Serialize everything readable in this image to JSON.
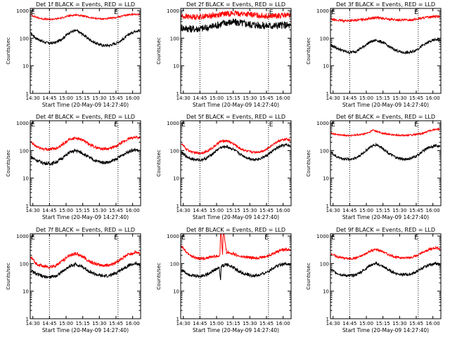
{
  "common": {
    "x_ticks": [
      "14:30",
      "14:45",
      "15:00",
      "15:15",
      "15:30",
      "15:45",
      "16:00"
    ],
    "x_tick_hours": [
      14.5,
      14.75,
      15.0,
      15.25,
      15.5,
      15.75,
      16.0
    ],
    "y_ticks": [
      "1",
      "10",
      "100",
      "1000"
    ],
    "y_tick_values": [
      1,
      10,
      100,
      1000
    ],
    "xlabel": "Start Time (20-May-09 14:27:40)",
    "ylabel": "Counts/sec",
    "xlim_hours": [
      14.4611,
      16.12
    ],
    "ylim": [
      1,
      1200
    ],
    "yscale": "log",
    "colors": {
      "events": "#000000",
      "lld": "#ff0000"
    }
  },
  "chart_data": [
    {
      "type": "line",
      "title": "Det 1f BLACK = Events, RED = LLD",
      "markers": [
        {
          "x": 14.505,
          "label": "E"
        },
        {
          "x": 15.75,
          "label": "E"
        }
      ],
      "vlines": [
        14.75,
        15.78
      ],
      "series": [
        {
          "name": "Events",
          "color": "#000000",
          "noise": 0.05,
          "x": [
            14.47,
            14.55,
            14.65,
            14.75,
            14.85,
            14.95,
            15.05,
            15.15,
            15.25,
            15.35,
            15.45,
            15.55,
            15.65,
            15.75,
            15.85,
            15.95,
            16.05,
            16.11
          ],
          "y": [
            150,
            100,
            75,
            65,
            70,
            100,
            160,
            190,
            140,
            90,
            65,
            55,
            55,
            65,
            90,
            140,
            190,
            180
          ]
        },
        {
          "name": "LLD",
          "color": "#ff0000",
          "noise": 0.03,
          "x": [
            14.47,
            14.55,
            14.65,
            14.75,
            14.85,
            14.95,
            15.05,
            15.15,
            15.25,
            15.35,
            15.45,
            15.55,
            15.65,
            15.75,
            15.85,
            15.95,
            16.05,
            16.11
          ],
          "y": [
            700,
            580,
            500,
            480,
            500,
            560,
            650,
            700,
            650,
            560,
            520,
            500,
            520,
            560,
            640,
            720,
            740,
            740
          ]
        }
      ]
    },
    {
      "type": "line",
      "title": "Det 2f BLACK = Events, RED = LLD",
      "markers": [
        {
          "x": 15.82,
          "label": "E"
        }
      ],
      "vlines": [
        14.75,
        15.78
      ],
      "series": [
        {
          "name": "Events",
          "color": "#000000",
          "noise": 0.14,
          "x": [
            14.47,
            14.6,
            14.75,
            14.9,
            15.05,
            15.15,
            15.25,
            15.35,
            15.5,
            15.6,
            15.75,
            15.9,
            16.05,
            16.11
          ],
          "y": [
            240,
            220,
            220,
            250,
            320,
            370,
            380,
            360,
            320,
            300,
            280,
            290,
            300,
            280
          ]
        },
        {
          "name": "LLD",
          "color": "#ff0000",
          "noise": 0.1,
          "x": [
            14.47,
            14.6,
            14.75,
            14.9,
            15.05,
            15.15,
            15.25,
            15.35,
            15.5,
            15.6,
            15.75,
            15.9,
            16.05,
            16.11
          ],
          "y": [
            620,
            600,
            600,
            650,
            720,
            780,
            800,
            780,
            720,
            680,
            640,
            640,
            680,
            650
          ]
        }
      ]
    },
    {
      "type": "line",
      "title": "Det 3f BLACK = Events, RED = LLD",
      "markers": [
        {
          "x": 14.505,
          "label": "E"
        },
        {
          "x": 15.75,
          "label": "E"
        }
      ],
      "vlines": [
        14.75,
        15.78
      ],
      "series": [
        {
          "name": "Events",
          "color": "#000000",
          "noise": 0.05,
          "x": [
            14.47,
            14.55,
            14.65,
            14.75,
            14.85,
            14.95,
            15.05,
            15.15,
            15.25,
            15.35,
            15.45,
            15.55,
            15.65,
            15.75,
            15.85,
            15.95,
            16.05,
            16.11
          ],
          "y": [
            55,
            45,
            35,
            30,
            34,
            48,
            72,
            85,
            70,
            48,
            36,
            30,
            30,
            38,
            55,
            75,
            90,
            85
          ]
        },
        {
          "name": "LLD",
          "color": "#ff0000",
          "noise": 0.04,
          "x": [
            14.47,
            14.55,
            14.65,
            14.75,
            14.85,
            14.95,
            15.05,
            15.15,
            15.25,
            15.35,
            15.45,
            15.55,
            15.65,
            15.75,
            15.85,
            15.95,
            16.05,
            16.11
          ],
          "y": [
            480,
            450,
            430,
            430,
            450,
            480,
            520,
            560,
            520,
            480,
            460,
            450,
            460,
            490,
            540,
            590,
            620,
            600
          ]
        }
      ]
    },
    {
      "type": "line",
      "title": "Det 4f BLACK = Events, RED = LLD",
      "markers": [
        {
          "x": 14.505,
          "label": "E"
        },
        {
          "x": 15.75,
          "label": "E"
        }
      ],
      "vlines": [
        14.75,
        15.78
      ],
      "series": [
        {
          "name": "Events",
          "color": "#000000",
          "noise": 0.06,
          "x": [
            14.47,
            14.55,
            14.65,
            14.75,
            14.85,
            14.95,
            15.05,
            15.15,
            15.25,
            15.35,
            15.45,
            15.55,
            15.65,
            15.75,
            15.85,
            15.95,
            16.05,
            16.11
          ],
          "y": [
            60,
            45,
            36,
            33,
            38,
            55,
            85,
            100,
            80,
            55,
            42,
            37,
            38,
            48,
            70,
            95,
            105,
            95
          ]
        },
        {
          "name": "LLD",
          "color": "#ff0000",
          "noise": 0.05,
          "x": [
            14.47,
            14.55,
            14.65,
            14.75,
            14.85,
            14.95,
            15.05,
            15.15,
            15.25,
            15.35,
            15.45,
            15.55,
            15.65,
            15.75,
            15.85,
            15.95,
            16.05,
            16.11
          ],
          "y": [
            200,
            140,
            115,
            110,
            120,
            170,
            250,
            290,
            240,
            165,
            130,
            115,
            118,
            140,
            200,
            270,
            310,
            290
          ]
        }
      ]
    },
    {
      "type": "line",
      "title": "Det 5f BLACK = Events, RED = LLD",
      "markers": [
        {
          "x": 14.505,
          "label": "E"
        },
        {
          "x": 15.82,
          "label": "E"
        }
      ],
      "vlines": [
        14.75,
        15.78
      ],
      "series": [
        {
          "name": "Events",
          "color": "#000000",
          "noise": 0.05,
          "x": [
            14.47,
            14.55,
            14.65,
            14.75,
            14.85,
            14.95,
            15.05,
            15.15,
            15.25,
            15.35,
            15.45,
            15.55,
            15.65,
            15.75,
            15.85,
            15.95,
            16.05,
            16.11
          ],
          "y": [
            85,
            60,
            48,
            45,
            52,
            80,
            125,
            140,
            110,
            75,
            55,
            48,
            50,
            65,
            100,
            140,
            160,
            145
          ]
        },
        {
          "name": "LLD",
          "color": "#ff0000",
          "noise": 0.04,
          "x": [
            14.47,
            14.55,
            14.65,
            14.75,
            14.85,
            14.95,
            15.05,
            15.15,
            15.25,
            15.35,
            15.45,
            15.55,
            15.65,
            15.75,
            15.85,
            15.95,
            16.05,
            16.11
          ],
          "y": [
            180,
            110,
            85,
            80,
            90,
            130,
            210,
            230,
            180,
            120,
            95,
            88,
            90,
            110,
            170,
            230,
            260,
            230
          ]
        }
      ]
    },
    {
      "type": "line",
      "title": "Det 6f BLACK = Events, RED = LLD",
      "markers": [
        {
          "x": 14.505,
          "label": "E"
        },
        {
          "x": 15.75,
          "label": "E"
        }
      ],
      "vlines": [
        14.75,
        15.78
      ],
      "series": [
        {
          "name": "Events",
          "color": "#000000",
          "noise": 0.05,
          "x": [
            14.47,
            14.55,
            14.65,
            14.75,
            14.85,
            14.95,
            15.05,
            15.15,
            15.25,
            15.35,
            15.45,
            15.55,
            15.65,
            15.75,
            15.85,
            15.95,
            16.05,
            16.11
          ],
          "y": [
            85,
            60,
            50,
            48,
            55,
            80,
            130,
            165,
            120,
            75,
            55,
            48,
            50,
            62,
            95,
            135,
            150,
            140
          ]
        },
        {
          "name": "LLD",
          "color": "#ff0000",
          "noise": 0.03,
          "x": [
            14.47,
            14.55,
            14.65,
            14.75,
            14.85,
            14.95,
            15.05,
            15.1,
            15.15,
            15.25,
            15.35,
            15.45,
            15.55,
            15.65,
            15.75,
            15.85,
            15.95,
            16.05,
            16.11
          ],
          "y": [
            430,
            380,
            360,
            350,
            360,
            390,
            460,
            560,
            500,
            420,
            380,
            360,
            355,
            360,
            380,
            420,
            520,
            600,
            580
          ]
        }
      ]
    },
    {
      "type": "line",
      "title": "Det 7f BLACK = Events, RED = LLD",
      "markers": [
        {
          "x": 14.505,
          "label": "E"
        },
        {
          "x": 15.75,
          "label": "E"
        }
      ],
      "vlines": [
        14.75,
        15.78
      ],
      "series": [
        {
          "name": "Events",
          "color": "#000000",
          "noise": 0.06,
          "x": [
            14.47,
            14.55,
            14.65,
            14.75,
            14.85,
            14.95,
            15.05,
            15.15,
            15.25,
            15.35,
            15.45,
            15.55,
            15.65,
            15.75,
            15.85,
            15.95,
            16.05,
            16.11
          ],
          "y": [
            55,
            42,
            34,
            32,
            36,
            52,
            80,
            95,
            75,
            52,
            40,
            35,
            36,
            45,
            65,
            88,
            100,
            90
          ]
        },
        {
          "name": "LLD",
          "color": "#ff0000",
          "noise": 0.06,
          "x": [
            14.47,
            14.55,
            14.65,
            14.75,
            14.85,
            14.95,
            15.05,
            15.15,
            15.25,
            15.35,
            15.45,
            15.55,
            15.65,
            15.75,
            15.85,
            15.95,
            16.05,
            16.11
          ],
          "y": [
            170,
            100,
            80,
            75,
            85,
            130,
            200,
            230,
            180,
            120,
            95,
            85,
            88,
            110,
            160,
            220,
            260,
            230
          ]
        }
      ]
    },
    {
      "type": "line",
      "title": "Det 8f BLACK = Events, RED = LLD",
      "markers": [
        {
          "x": 14.505,
          "label": "E"
        },
        {
          "x": 15.75,
          "label": "E"
        }
      ],
      "vlines": [
        14.75,
        15.78
      ],
      "series": [
        {
          "name": "Events",
          "color": "#000000",
          "noise": 0.06,
          "x": [
            14.47,
            14.55,
            14.65,
            14.75,
            14.85,
            14.95,
            15.04,
            15.06,
            15.07,
            15.15,
            15.25,
            15.35,
            15.45,
            15.55,
            15.65,
            15.75,
            15.85,
            15.95,
            16.05,
            16.11
          ],
          "y": [
            60,
            45,
            36,
            35,
            40,
            55,
            72,
            25,
            80,
            95,
            72,
            50,
            40,
            36,
            38,
            48,
            70,
            92,
            100,
            90
          ]
        },
        {
          "name": "LLD",
          "color": "#ff0000",
          "noise": 0.05,
          "x": [
            14.47,
            14.55,
            14.65,
            14.75,
            14.85,
            14.95,
            15.05,
            15.06,
            15.07,
            15.09,
            15.1,
            15.11,
            15.15,
            15.25,
            15.35,
            15.45,
            15.55,
            15.65,
            15.75,
            15.85,
            15.95,
            16.05,
            16.11
          ],
          "y": [
            420,
            250,
            170,
            150,
            160,
            180,
            190,
            1200,
            1200,
            190,
            1200,
            1200,
            260,
            230,
            180,
            170,
            160,
            165,
            180,
            230,
            300,
            330,
            300
          ]
        }
      ]
    },
    {
      "type": "line",
      "title": "Det 9f BLACK = Events, RED = LLD",
      "markers": [
        {
          "x": 14.505,
          "label": "E"
        },
        {
          "x": 15.75,
          "label": "E"
        }
      ],
      "vlines": [
        14.75,
        15.78
      ],
      "series": [
        {
          "name": "Events",
          "color": "#000000",
          "noise": 0.05,
          "x": [
            14.47,
            14.55,
            14.65,
            14.75,
            14.85,
            14.95,
            15.05,
            15.15,
            15.25,
            15.35,
            15.45,
            15.55,
            15.65,
            15.75,
            15.85,
            15.95,
            16.05,
            16.11
          ],
          "y": [
            60,
            46,
            38,
            36,
            40,
            55,
            85,
            100,
            78,
            55,
            44,
            40,
            40,
            50,
            70,
            92,
            100,
            92
          ]
        },
        {
          "name": "LLD",
          "color": "#ff0000",
          "noise": 0.04,
          "x": [
            14.47,
            14.55,
            14.65,
            14.75,
            14.85,
            14.95,
            15.05,
            15.15,
            15.25,
            15.35,
            15.45,
            15.55,
            15.65,
            15.75,
            15.85,
            15.95,
            16.05,
            16.11
          ],
          "y": [
            230,
            180,
            160,
            150,
            160,
            200,
            280,
            330,
            270,
            200,
            170,
            160,
            165,
            190,
            250,
            330,
            380,
            340
          ]
        }
      ]
    }
  ]
}
